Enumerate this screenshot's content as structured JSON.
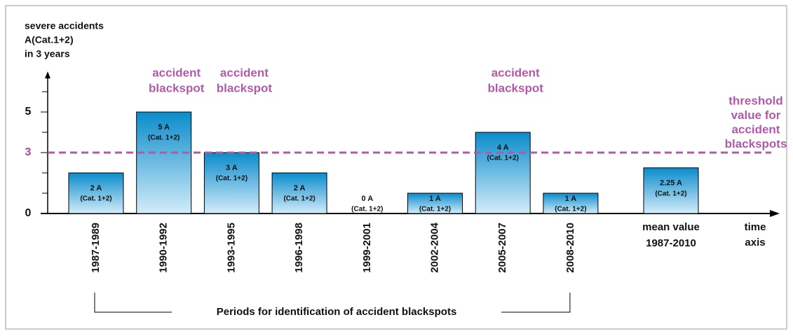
{
  "chart_data": {
    "type": "bar",
    "ylabel_lines": [
      "severe accidents",
      "A(Cat.1+2)",
      "in 3 years"
    ],
    "xlabel_lines": [
      "time",
      "axis"
    ],
    "categories": [
      "1987-1989",
      "1990-1992",
      "1993-1995",
      "1996-1998",
      "1999-2001",
      "2002-2004",
      "2005-2007",
      "2008-2010"
    ],
    "values": [
      2,
      5,
      3,
      2,
      0,
      1,
      4,
      1
    ],
    "value_labels": [
      "2 A",
      "5 A",
      "3 A",
      "2 A",
      "0 A",
      "1 A",
      "4 A",
      "1 A"
    ],
    "value_sublabel": "(Cat. 1+2)",
    "mean": {
      "label_lines": [
        "mean value",
        "1987-2010"
      ],
      "value": 2.25,
      "value_label": "2.25 A"
    },
    "ylim": [
      0,
      7
    ],
    "yticks": [
      0,
      3,
      5
    ],
    "minor_yticks": [
      1,
      2,
      4,
      6
    ],
    "threshold": {
      "value": 3,
      "label_lines": [
        "threshold",
        "value for",
        "accident",
        "blackspots"
      ],
      "color": "#b05aa8"
    },
    "annotations": [
      {
        "index": 1,
        "lines": [
          "accident",
          "blackspot"
        ]
      },
      {
        "index": 2,
        "lines": [
          "accident",
          "blackspot"
        ]
      },
      {
        "index": 6,
        "lines": [
          "accident",
          "blackspot"
        ]
      }
    ],
    "bracket_label": "Periods for identification of accident blackspots",
    "color_top": "#0a8ccb",
    "color_bottom": "#d3ecfa"
  }
}
